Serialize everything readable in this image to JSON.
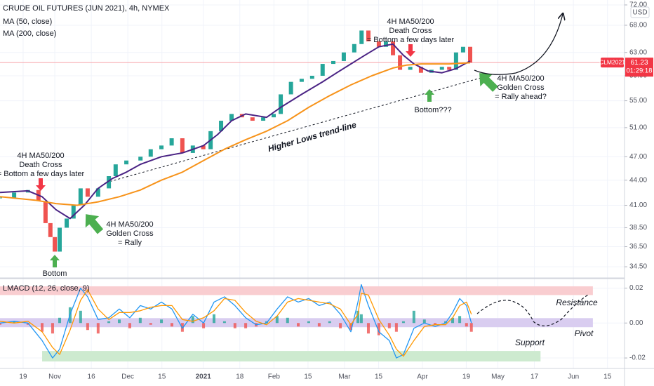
{
  "chart_data": [
    {
      "type": "candlestick",
      "title": "CRUDE OIL FUTURES (JUN 2021), 4h, NYMEX",
      "currency": "USD",
      "log_scale": true,
      "grid": true,
      "xlim": [
        -9.5,
        247
      ],
      "xticks": [
        {
          "value": 0,
          "label": "19"
        },
        {
          "value": 13,
          "label": "Nov"
        },
        {
          "value": 28,
          "label": "16"
        },
        {
          "value": 43,
          "label": "Dec"
        },
        {
          "value": 57,
          "label": "15"
        },
        {
          "value": 74,
          "label": "2021"
        },
        {
          "value": 89,
          "label": "18"
        },
        {
          "value": 103,
          "label": "Feb"
        },
        {
          "value": 117,
          "label": "15"
        },
        {
          "value": 132,
          "label": "Mar"
        },
        {
          "value": 146,
          "label": "15"
        },
        {
          "value": 164,
          "label": "Apr"
        },
        {
          "value": 182,
          "label": "19"
        },
        {
          "value": 195,
          "label": "May"
        },
        {
          "value": 210,
          "label": "17"
        },
        {
          "value": 226,
          "label": "Jun"
        },
        {
          "value": 240,
          "label": "15"
        }
      ],
      "ylim": [
        33.5,
        73
      ],
      "yticks": [
        {
          "value": 72,
          "label": "72.00"
        },
        {
          "value": 68,
          "label": "68.00"
        },
        {
          "value": 63,
          "label": "63.00"
        },
        {
          "value": 59,
          "label": "59.00"
        },
        {
          "value": 55,
          "label": "55.00"
        },
        {
          "value": 51,
          "label": "51.00"
        },
        {
          "value": 47,
          "label": "47.00"
        },
        {
          "value": 44,
          "label": "44.00"
        },
        {
          "value": 41,
          "label": "41.00"
        },
        {
          "value": 38.5,
          "label": "38.50"
        },
        {
          "value": 36.5,
          "label": "36.50"
        },
        {
          "value": 34.5,
          "label": "34.50"
        }
      ],
      "series": [
        {
          "name": "CLM2021",
          "color": "#26a69a",
          "down_color": "#ef5350",
          "x": [
            -9.5,
            -3.7,
            2,
            6.3,
            9.2,
            11.2,
            13,
            15,
            17.9,
            20.7,
            23.6,
            26.5,
            30.8,
            35.2,
            38,
            42.4,
            48.2,
            52.4,
            56.8,
            61,
            65.4,
            69.7,
            74,
            77,
            81.3,
            85.6,
            89.9,
            94.2,
            98.6,
            102.9,
            105.8,
            110,
            114.4,
            118.7,
            123,
            127.4,
            131.7,
            136,
            139,
            141.8,
            146.1,
            149,
            151.9,
            154.8,
            159,
            163.4,
            167.7,
            172,
            175,
            177.8,
            180.7,
            183.6
          ],
          "values": [
            41.9,
            42.5,
            42.8,
            41.5,
            39,
            37.5,
            36,
            38.5,
            39.5,
            41,
            43,
            42,
            43,
            44.5,
            46,
            46.5,
            47,
            48,
            48.5,
            49.5,
            47.5,
            48.5,
            48,
            50.5,
            52,
            53,
            52.5,
            52,
            52.5,
            53,
            56,
            58,
            58.5,
            59,
            61,
            61.5,
            63,
            64.5,
            67,
            65,
            64,
            65,
            62.5,
            60,
            60.5,
            59.5,
            60,
            60.5,
            60,
            63,
            64,
            61.23
          ]
        }
      ],
      "last_price_timer": "01:29:18",
      "ma_series": [
        {
          "name": "MA (50, close)",
          "color": "#4a2384",
          "x": [
            -9.5,
            2,
            7.8,
            13.5,
            19.3,
            25.1,
            30.8,
            36.6,
            42.4,
            48.1,
            56.8,
            65.4,
            74.1,
            79.8,
            85.6,
            91.4,
            100,
            105.8,
            114.4,
            123,
            128.8,
            134.6,
            140.3,
            146.1,
            151.9,
            156.2,
            160.5,
            166.3,
            172,
            177.8,
            183.6
          ],
          "values": [
            42.5,
            42.7,
            42,
            40.5,
            39.5,
            41,
            43,
            44.2,
            45,
            46,
            47,
            47.5,
            48.5,
            50,
            52,
            53,
            52.5,
            54,
            56,
            58,
            59.5,
            61,
            62.5,
            64,
            64.5,
            62.5,
            61,
            59.8,
            59.5,
            60.2,
            61.5
          ]
        },
        {
          "name": "MA (200, close)",
          "color": "#f7931a",
          "x": [
            -9.5,
            4.9,
            13.5,
            22.2,
            30.8,
            39.5,
            48.1,
            56.8,
            65.4,
            74.1,
            82.7,
            91.4,
            100,
            108.6,
            117.3,
            125.9,
            134.6,
            143.2,
            151.9,
            157.6,
            163.4,
            175,
            183.6
          ],
          "values": [
            42,
            41.6,
            41.2,
            41,
            41.4,
            42,
            42.8,
            44,
            45,
            46.5,
            48,
            49.3,
            50.5,
            52,
            54,
            55.8,
            57.5,
            59,
            60.3,
            60.8,
            61,
            61,
            61.2
          ]
        }
      ],
      "trendline": {
        "label": "Higher Lows trend-line",
        "from": [
          34,
          43.7
        ],
        "to": [
          192,
          59.1
        ]
      },
      "annotations": [
        {
          "lines": [
            "4H MA50/200",
            "Death Cross",
            "= Bottom a few days later"
          ]
        },
        {
          "lines": [
            "4H MA50/200",
            "Golden Cross",
            "= Rally ahead?"
          ]
        },
        {
          "lines": [
            "Bottom???"
          ]
        },
        {
          "lines": [
            "4H MA50/200",
            "Death Cross",
            "= Bottom a few days later"
          ]
        },
        {
          "lines": [
            "4H MA50/200",
            "Golden Cross",
            "= Rally"
          ]
        },
        {
          "lines": [
            "Bottom"
          ]
        }
      ]
    },
    {
      "type": "line",
      "title": "LMACD (12, 26, close, 9)",
      "ylim": [
        -0.026,
        0.025
      ],
      "yticks": [
        0.02,
        {
          "value": 0,
          "label": "0.00"
        },
        -0.02
      ],
      "x": [
        -9.5,
        -3.7,
        2,
        7.8,
        12.1,
        15,
        19.3,
        23.6,
        26.5,
        30.8,
        35.2,
        39.5,
        43.8,
        48.1,
        52.4,
        56.8,
        61.1,
        65.4,
        69.7,
        74.1,
        78.4,
        82.7,
        87,
        91.4,
        95.7,
        100,
        104.3,
        108.6,
        113,
        117.3,
        121.6,
        125.9,
        130.3,
        134.6,
        137.5,
        138.9,
        141.8,
        146.1,
        150.4,
        153.3,
        156.2,
        160.5,
        164.8,
        169.2,
        173.5,
        176.4,
        179.3,
        182.1,
        184.1
      ],
      "series": [
        {
          "color": "#2196f3",
          "values": [
            0.0,
            0.001,
            0.0,
            -0.01,
            -0.02,
            -0.015,
            0.005,
            0.02,
            0.015,
            0.002,
            0.003,
            0.008,
            0.003,
            0.01,
            0.008,
            0.012,
            0.008,
            -0.003,
            0.005,
            0.0,
            0.012,
            0.015,
            0.01,
            0.003,
            -0.001,
            0.0,
            0.008,
            0.015,
            0.012,
            0.014,
            0.01,
            0.012,
            0.005,
            -0.005,
            0.012,
            0.022,
            0.01,
            -0.005,
            -0.01,
            -0.02,
            -0.018,
            -0.003,
            0.0,
            -0.002,
            0.0,
            0.006,
            0.014,
            0.01,
            0.0
          ]
        },
        {
          "color": "#ff9800",
          "values": [
            0.001,
            0.0,
            0.001,
            -0.005,
            -0.014,
            -0.018,
            -0.004,
            0.013,
            0.019,
            0.008,
            0.002,
            0.006,
            0.006,
            0.007,
            0.009,
            0.01,
            0.01,
            0.002,
            0.001,
            0.003,
            0.007,
            0.014,
            0.013,
            0.006,
            0.001,
            -0.001,
            0.004,
            0.012,
            0.014,
            0.013,
            0.012,
            0.011,
            0.008,
            -0.001,
            0.005,
            0.017,
            0.016,
            0.002,
            -0.007,
            -0.015,
            -0.019,
            -0.01,
            -0.002,
            -0.001,
            -0.001,
            0.003,
            0.01,
            0.012,
            0.005
          ]
        }
      ],
      "histogram": {
        "color": "#26a69a",
        "down_color": "#ef5350",
        "values": [
          -0.001,
          0.001,
          -0.001,
          -0.005,
          -0.006,
          0.003,
          0.009,
          0.007,
          -0.004,
          -0.006,
          0.001,
          0.002,
          -0.003,
          0.003,
          -0.001,
          0.002,
          -0.002,
          -0.005,
          0.004,
          -0.003,
          0.005,
          0.001,
          -0.003,
          -0.003,
          -0.002,
          0.001,
          0.004,
          0.003,
          -0.002,
          0.001,
          -0.002,
          0.001,
          -0.003,
          -0.004,
          0.007,
          0.005,
          -0.006,
          -0.007,
          -0.003,
          -0.005,
          0.001,
          0.007,
          0.002,
          -0.001,
          0.001,
          0.003,
          0.004,
          -0.002,
          -0.005
        ]
      },
      "zones": [
        {
          "label": "Resistance",
          "range": [
            0.016,
            0.021
          ],
          "xrange": [
            -9.5,
            234
          ],
          "color": "#f9cdd0"
        },
        {
          "label": "Pivot",
          "range": [
            -0.0024,
            0.0028
          ],
          "xrange": [
            -9.5,
            234
          ],
          "color": "#d9cdf0"
        },
        {
          "label": "Support",
          "range": [
            -0.022,
            -0.016
          ],
          "xrange": [
            7.8,
            212.5
          ],
          "color": "#cdeacf"
        }
      ]
    }
  ]
}
